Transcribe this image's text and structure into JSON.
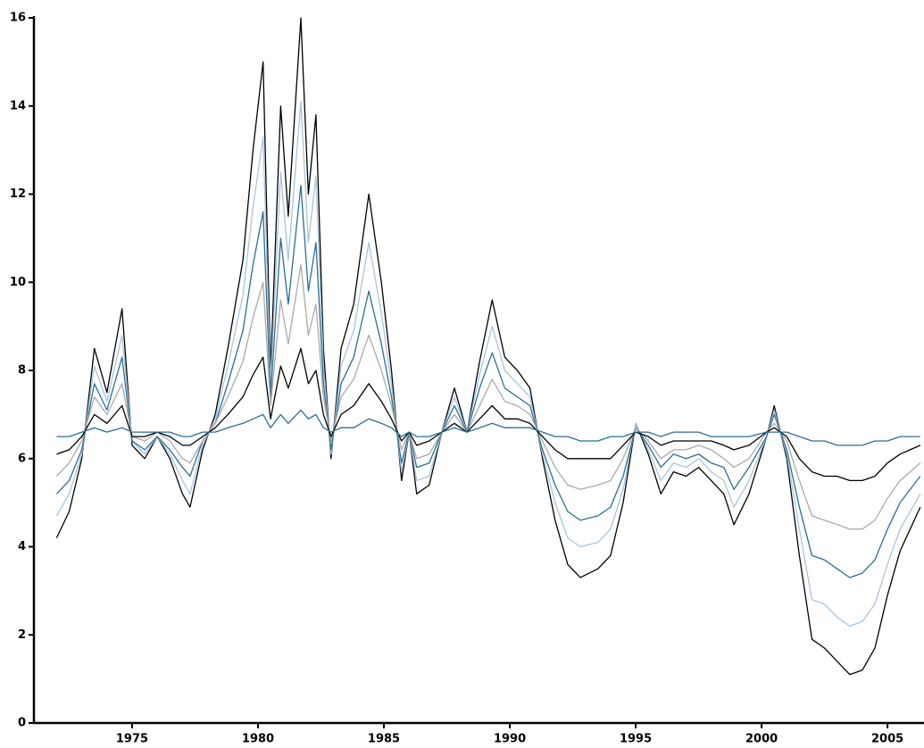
{
  "chart_data": {
    "type": "line",
    "x": [
      1972.0,
      1972.5,
      1973.0,
      1973.5,
      1974.0,
      1974.6,
      1975.0,
      1975.5,
      1976.0,
      1976.5,
      1977.0,
      1977.3,
      1977.8,
      1978.3,
      1978.8,
      1979.4,
      1979.8,
      1980.2,
      1980.5,
      1980.9,
      1981.2,
      1981.7,
      1982.0,
      1982.3,
      1982.6,
      1982.9,
      1983.3,
      1983.8,
      1984.4,
      1984.9,
      1985.3,
      1985.7,
      1986.0,
      1986.3,
      1986.8,
      1987.3,
      1987.8,
      1988.3,
      1988.8,
      1989.3,
      1989.8,
      1990.3,
      1990.8,
      1991.3,
      1991.8,
      1992.3,
      1992.8,
      1993.5,
      1994.0,
      1994.5,
      1995.0,
      1995.5,
      1996.0,
      1996.5,
      1997.0,
      1997.5,
      1998.0,
      1998.5,
      1998.9,
      1999.5,
      2000.2,
      2000.5,
      2001.0,
      2001.5,
      2002.0,
      2002.5,
      2003.0,
      2003.5,
      2004.0,
      2004.5,
      2005.0,
      2005.5,
      2006.3
    ],
    "series": [
      {
        "color": "#000000",
        "values": [
          4.2,
          4.8,
          6.0,
          8.5,
          7.5,
          9.4,
          6.3,
          6.0,
          6.5,
          6.0,
          5.2,
          4.9,
          6.2,
          7.0,
          8.5,
          10.5,
          13.0,
          15.0,
          8.0,
          14.0,
          11.5,
          16.0,
          12.0,
          13.8,
          8.5,
          6.0,
          8.5,
          9.5,
          12.0,
          10.0,
          8.0,
          5.5,
          6.6,
          5.2,
          5.4,
          6.6,
          7.6,
          6.6,
          8.2,
          9.6,
          8.3,
          8.0,
          7.6,
          6.0,
          4.6,
          3.6,
          3.3,
          3.5,
          3.8,
          5.0,
          6.8,
          6.1,
          5.2,
          5.7,
          5.6,
          5.8,
          5.5,
          5.2,
          4.5,
          5.2,
          6.5,
          7.2,
          6.0,
          3.8,
          1.9,
          1.7,
          1.4,
          1.1,
          1.2,
          1.7,
          2.9,
          3.9,
          4.9
        ]
      },
      {
        "color": "#a9c4de",
        "values": [
          4.7,
          5.2,
          6.1,
          8.1,
          7.3,
          8.8,
          6.4,
          6.1,
          6.5,
          6.1,
          5.5,
          5.2,
          6.3,
          6.9,
          8.1,
          9.7,
          11.7,
          13.3,
          7.7,
          12.5,
          10.5,
          14.1,
          10.9,
          12.4,
          8.1,
          6.1,
          8.1,
          8.9,
          10.9,
          9.3,
          7.7,
          5.7,
          6.6,
          5.5,
          5.6,
          6.6,
          7.4,
          6.6,
          7.9,
          9.0,
          8.0,
          7.7,
          7.4,
          6.1,
          5.0,
          4.2,
          4.0,
          4.1,
          4.4,
          5.3,
          6.8,
          6.2,
          5.5,
          5.9,
          5.8,
          6.0,
          5.7,
          5.5,
          4.9,
          5.5,
          6.5,
          7.1,
          6.1,
          4.4,
          2.8,
          2.7,
          2.4,
          2.2,
          2.3,
          2.7,
          3.6,
          4.4,
          5.2
        ]
      },
      {
        "color": "#2a6f97",
        "values": [
          5.2,
          5.5,
          6.2,
          7.7,
          7.1,
          8.3,
          6.4,
          6.2,
          6.5,
          6.2,
          5.8,
          5.6,
          6.4,
          6.8,
          7.7,
          8.9,
          10.4,
          11.6,
          7.4,
          11.0,
          9.5,
          12.2,
          9.8,
          10.9,
          7.7,
          6.2,
          7.7,
          8.3,
          9.8,
          8.6,
          7.4,
          5.9,
          6.6,
          5.8,
          5.9,
          6.6,
          7.2,
          6.6,
          7.6,
          8.4,
          7.6,
          7.4,
          7.2,
          6.2,
          5.4,
          4.8,
          4.6,
          4.7,
          4.9,
          5.6,
          6.7,
          6.3,
          5.8,
          6.1,
          6.0,
          6.1,
          5.9,
          5.8,
          5.3,
          5.8,
          6.5,
          7.0,
          6.2,
          4.9,
          3.8,
          3.7,
          3.5,
          3.3,
          3.4,
          3.7,
          4.4,
          5.0,
          5.6
        ]
      },
      {
        "color": "#aaaaaa",
        "values": [
          5.6,
          5.9,
          6.4,
          7.4,
          7.0,
          7.7,
          6.5,
          6.4,
          6.6,
          6.4,
          6.0,
          5.9,
          6.4,
          6.8,
          7.4,
          8.2,
          9.2,
          10.0,
          7.2,
          9.6,
          8.6,
          10.4,
          8.8,
          9.5,
          7.4,
          6.4,
          7.4,
          7.8,
          8.8,
          8.0,
          7.2,
          6.2,
          6.6,
          6.0,
          6.1,
          6.6,
          7.0,
          6.6,
          7.2,
          7.8,
          7.3,
          7.2,
          7.0,
          6.4,
          5.8,
          5.4,
          5.3,
          5.4,
          5.5,
          6.0,
          6.7,
          6.4,
          6.0,
          6.2,
          6.2,
          6.3,
          6.2,
          6.0,
          5.8,
          6.0,
          6.6,
          6.8,
          6.4,
          5.5,
          4.7,
          4.6,
          4.5,
          4.4,
          4.4,
          4.6,
          5.1,
          5.5,
          5.9
        ]
      },
      {
        "color": "#000000",
        "values": [
          6.1,
          6.2,
          6.5,
          7.0,
          6.8,
          7.2,
          6.5,
          6.5,
          6.6,
          6.5,
          6.3,
          6.3,
          6.5,
          6.7,
          7.0,
          7.4,
          7.9,
          8.3,
          6.9,
          8.1,
          7.6,
          8.5,
          7.7,
          8.0,
          7.0,
          6.5,
          7.0,
          7.2,
          7.7,
          7.3,
          6.9,
          6.4,
          6.6,
          6.3,
          6.4,
          6.6,
          6.8,
          6.6,
          6.9,
          7.2,
          6.9,
          6.9,
          6.8,
          6.5,
          6.2,
          6.0,
          6.0,
          6.0,
          6.0,
          6.3,
          6.6,
          6.5,
          6.3,
          6.4,
          6.4,
          6.4,
          6.4,
          6.3,
          6.2,
          6.3,
          6.6,
          6.7,
          6.5,
          6.0,
          5.7,
          5.6,
          5.6,
          5.5,
          5.5,
          5.6,
          5.9,
          6.1,
          6.3
        ]
      },
      {
        "color": "#2a6f97",
        "values": [
          6.5,
          6.5,
          6.6,
          6.7,
          6.6,
          6.7,
          6.6,
          6.6,
          6.6,
          6.6,
          6.5,
          6.5,
          6.6,
          6.6,
          6.7,
          6.8,
          6.9,
          7.0,
          6.7,
          7.0,
          6.8,
          7.1,
          6.9,
          7.0,
          6.7,
          6.6,
          6.7,
          6.7,
          6.9,
          6.8,
          6.7,
          6.5,
          6.6,
          6.5,
          6.5,
          6.6,
          6.7,
          6.6,
          6.7,
          6.8,
          6.7,
          6.7,
          6.7,
          6.6,
          6.5,
          6.5,
          6.4,
          6.4,
          6.5,
          6.5,
          6.6,
          6.6,
          6.5,
          6.6,
          6.6,
          6.6,
          6.5,
          6.5,
          6.5,
          6.5,
          6.6,
          6.6,
          6.6,
          6.5,
          6.4,
          6.4,
          6.3,
          6.3,
          6.3,
          6.4,
          6.4,
          6.5,
          6.5
        ]
      }
    ],
    "xlim": [
      1971.1,
      2006.45
    ],
    "xticks": [
      1975,
      1980,
      1985,
      1990,
      1995,
      2000,
      2005
    ],
    "ylim": [
      0,
      16
    ],
    "yticks": [
      0,
      2,
      4,
      6,
      8,
      10,
      12,
      14,
      16
    ]
  }
}
